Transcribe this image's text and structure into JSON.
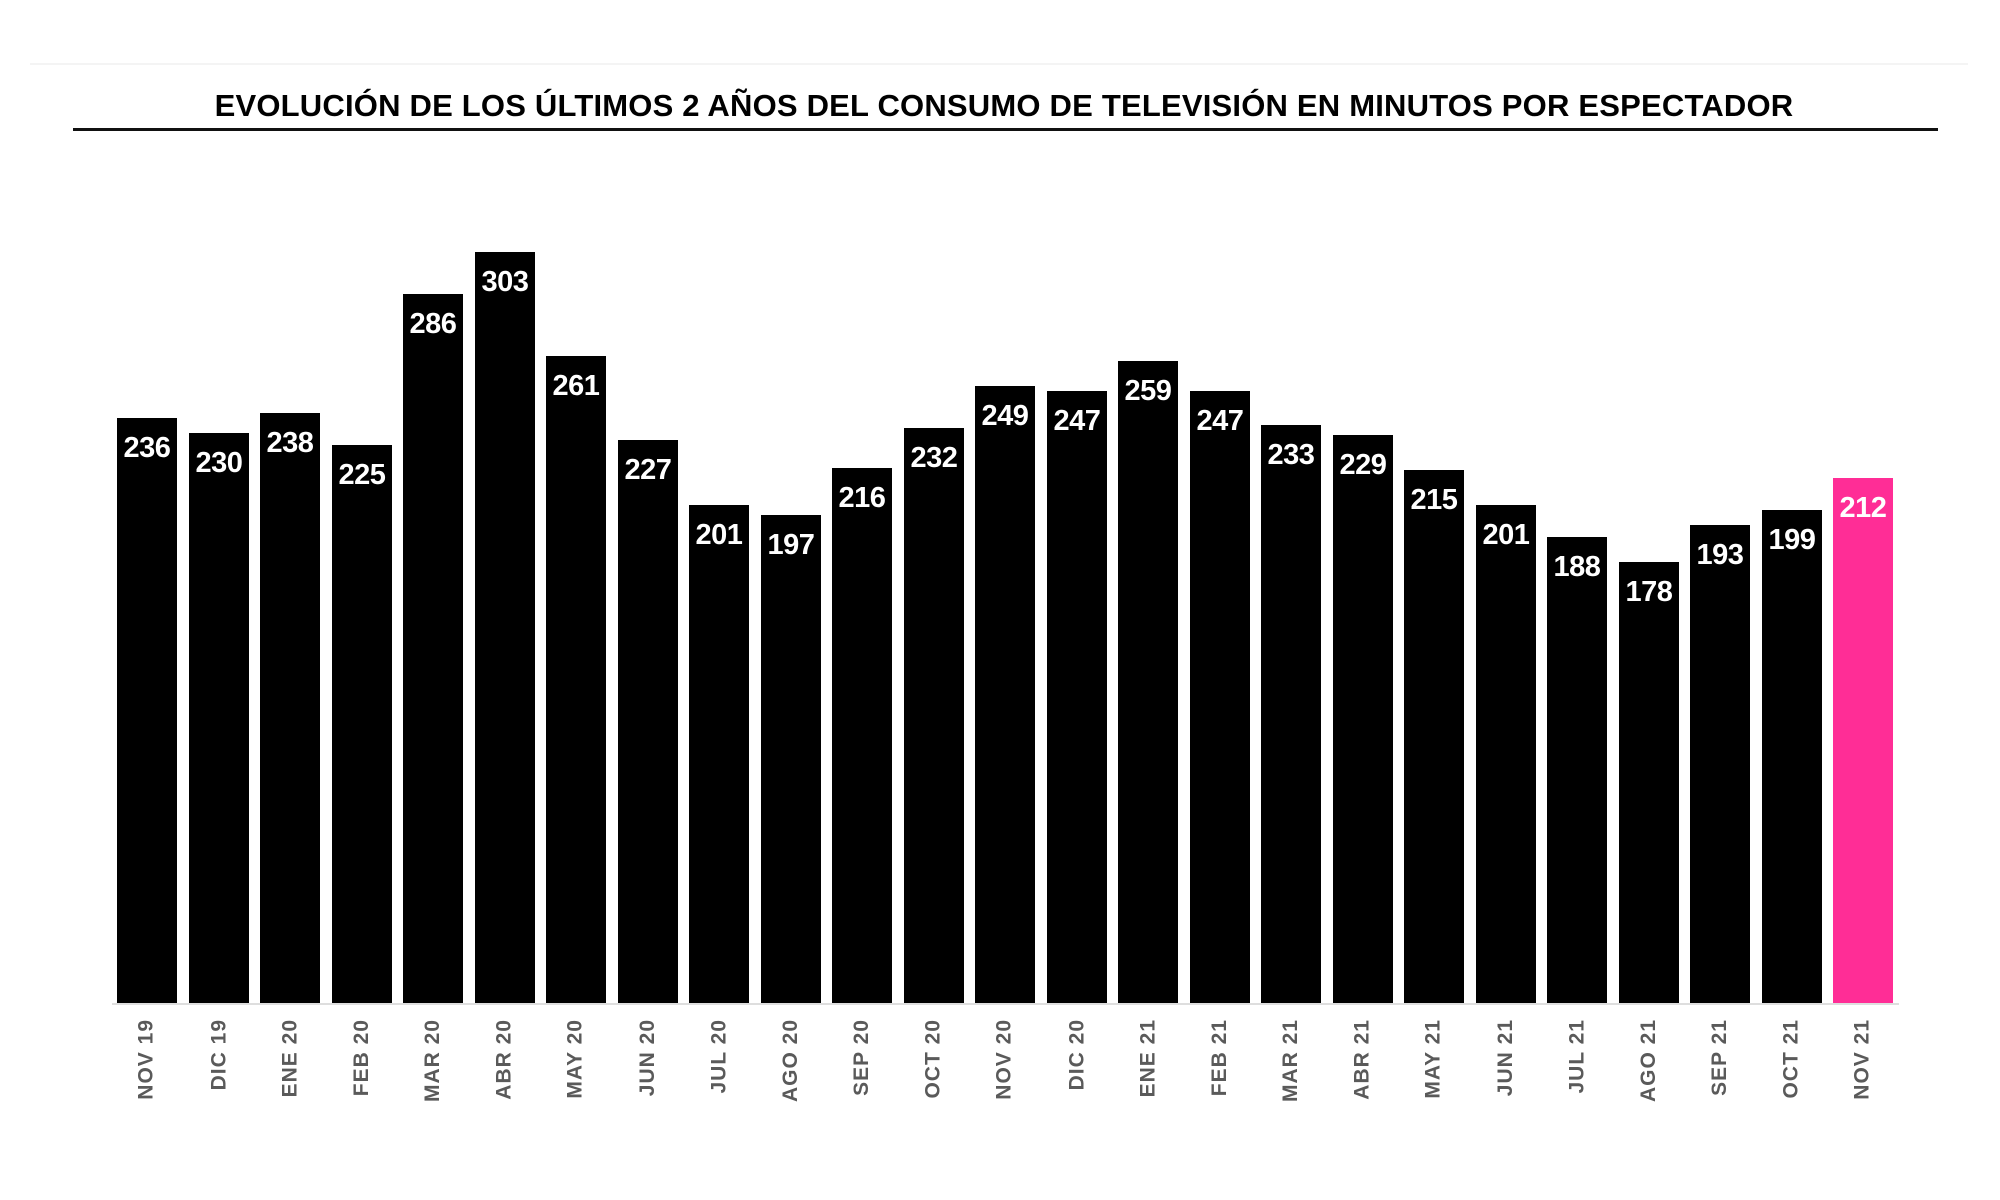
{
  "title": "EVOLUCIÓN DE LOS ÚLTIMOS 2 AÑOS DEL CONSUMO DE TELEVISIÓN EN MINUTOS POR ESPECTADOR",
  "colors": {
    "bar": "#000000",
    "highlight": "#ff2d96",
    "label": "#ffffff",
    "axis_text": "#5a5a5a"
  },
  "chart_data": {
    "type": "bar",
    "title": "EVOLUCIÓN DE LOS ÚLTIMOS 2 AÑOS DEL CONSUMO DE TELEVISIÓN EN MINUTOS POR ESPECTADOR",
    "xlabel": "",
    "ylabel": "",
    "categories": [
      "NOV 19",
      "DIC 19",
      "ENE 20",
      "FEB 20",
      "MAR 20",
      "ABR 20",
      "MAY 20",
      "JUN 20",
      "JUL 20",
      "AGO 20",
      "SEP 20",
      "OCT 20",
      "NOV 20",
      "DIC 20",
      "ENE 21",
      "FEB 21",
      "MAR 21",
      "ABR 21",
      "MAY 21",
      "JUN 21",
      "JUL 21",
      "AGO 21",
      "SEP 21",
      "OCT 21",
      "NOV 21"
    ],
    "values": [
      236,
      230,
      238,
      225,
      286,
      303,
      261,
      227,
      201,
      197,
      216,
      232,
      249,
      247,
      259,
      247,
      233,
      229,
      215,
      201,
      188,
      178,
      193,
      199,
      212
    ],
    "highlight_index": 24,
    "ylim": [
      0,
      303
    ],
    "grid": false,
    "legend": null,
    "data_labels": "inside-top, white"
  }
}
